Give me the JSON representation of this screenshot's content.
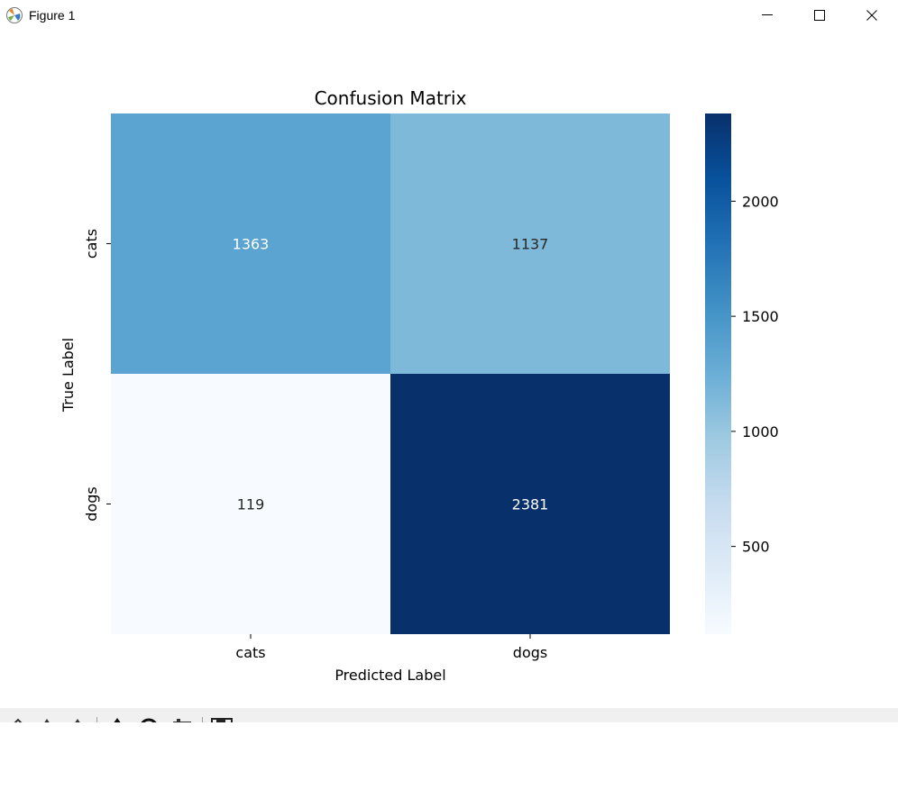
{
  "window": {
    "title": "Figure 1",
    "icons": [
      "matplotlib-app-icon",
      "minimize-icon",
      "maximize-icon",
      "close-icon"
    ]
  },
  "toolbar": {
    "icons": [
      "home-icon",
      "back-icon",
      "forward-icon",
      "pan-icon",
      "zoom-icon",
      "configure-subplots-icon",
      "save-icon"
    ]
  },
  "chart_data": {
    "type": "heatmap",
    "title": "Confusion Matrix",
    "xlabel": "Predicted Label",
    "ylabel": "True Label",
    "x_categories": [
      "cats",
      "dogs"
    ],
    "y_categories": [
      "cats",
      "dogs"
    ],
    "values": [
      [
        1363,
        1137
      ],
      [
        119,
        2381
      ]
    ],
    "colormap": "Blues",
    "colorbar": {
      "min": 119,
      "max": 2381,
      "ticks": [
        "500",
        "1000",
        "1500",
        "2000"
      ]
    }
  }
}
